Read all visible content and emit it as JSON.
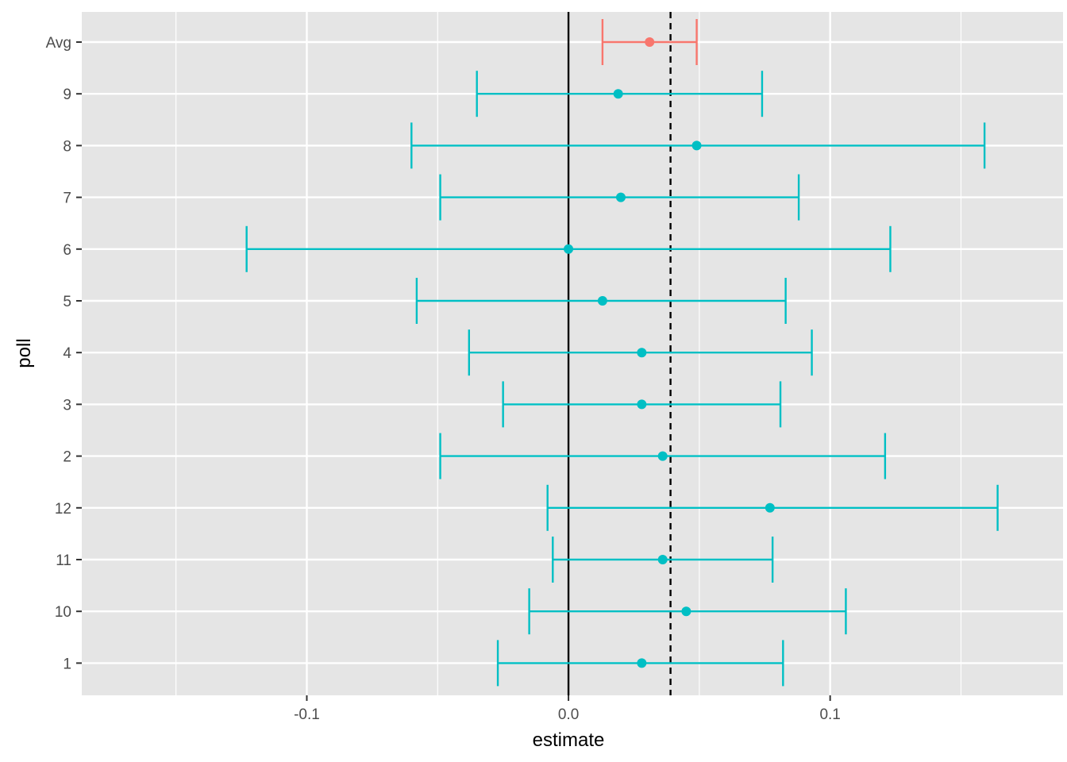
{
  "chart_data": {
    "type": "errorbar",
    "title": "",
    "xlabel": "estimate",
    "ylabel": "poll",
    "xlim": [
      -0.186,
      0.189
    ],
    "x_ticks": [
      {
        "value": -0.1,
        "label": "-0.1"
      },
      {
        "value": 0.0,
        "label": "0.0"
      },
      {
        "value": 0.1,
        "label": "0.1"
      }
    ],
    "x_minor": [
      -0.15,
      -0.05,
      0.05,
      0.15
    ],
    "grid": true,
    "legend": "none",
    "reference_lines": [
      {
        "value": 0.0,
        "style": "solid",
        "color": "#000000"
      },
      {
        "value": 0.039,
        "style": "dashed",
        "color": "#000000"
      }
    ],
    "categories": [
      "Avg",
      "9",
      "8",
      "7",
      "6",
      "5",
      "4",
      "3",
      "2",
      "12",
      "11",
      "10",
      "1"
    ],
    "points": [
      {
        "poll": "Avg",
        "estimate": 0.031,
        "lower": 0.013,
        "upper": 0.049,
        "group": "average"
      },
      {
        "poll": "9",
        "estimate": 0.019,
        "lower": -0.035,
        "upper": 0.074,
        "group": "poll"
      },
      {
        "poll": "8",
        "estimate": 0.049,
        "lower": -0.06,
        "upper": 0.159,
        "group": "poll"
      },
      {
        "poll": "7",
        "estimate": 0.02,
        "lower": -0.049,
        "upper": 0.088,
        "group": "poll"
      },
      {
        "poll": "6",
        "estimate": 0.0,
        "lower": -0.123,
        "upper": 0.123,
        "group": "poll"
      },
      {
        "poll": "5",
        "estimate": 0.013,
        "lower": -0.058,
        "upper": 0.083,
        "group": "poll"
      },
      {
        "poll": "4",
        "estimate": 0.028,
        "lower": -0.038,
        "upper": 0.093,
        "group": "poll"
      },
      {
        "poll": "3",
        "estimate": 0.028,
        "lower": -0.025,
        "upper": 0.081,
        "group": "poll"
      },
      {
        "poll": "2",
        "estimate": 0.036,
        "lower": -0.049,
        "upper": 0.121,
        "group": "poll"
      },
      {
        "poll": "12",
        "estimate": 0.077,
        "lower": -0.008,
        "upper": 0.164,
        "group": "poll"
      },
      {
        "poll": "11",
        "estimate": 0.036,
        "lower": -0.006,
        "upper": 0.078,
        "group": "poll"
      },
      {
        "poll": "10",
        "estimate": 0.045,
        "lower": -0.015,
        "upper": 0.106,
        "group": "poll"
      },
      {
        "poll": "1",
        "estimate": 0.028,
        "lower": -0.027,
        "upper": 0.082,
        "group": "poll"
      }
    ],
    "colors": {
      "average": "#F8766D",
      "poll": "#00BFC4",
      "panel_background": "#E5E5E5",
      "grid": "#FFFFFF"
    }
  }
}
